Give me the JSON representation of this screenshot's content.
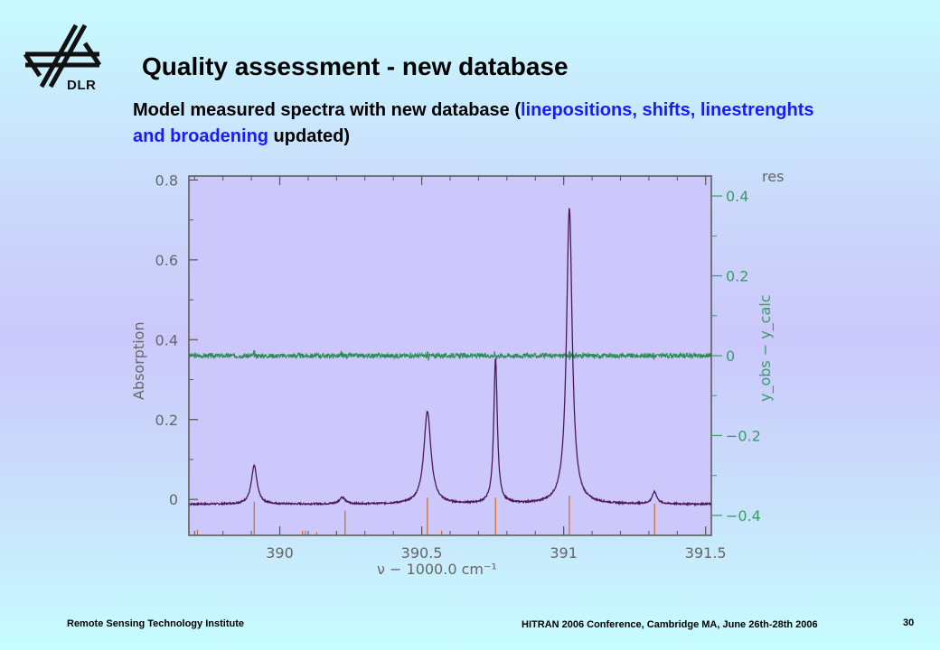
{
  "slide": {
    "logo_text": "DLR",
    "title": "Quality assessment - new database",
    "subtitle_before": "Model measured spectra with new database (",
    "subtitle_highlight": "linepositions, shifts, linestrenghts and broadening",
    "subtitle_after": " updated)",
    "footer_left": "Remote Sensing Technology  Institute",
    "footer_center": "HITRAN 2006 Conference, Cambridge MA, June 26th-28th 2006",
    "page_number": "30",
    "colors": {
      "highlight": "#1a1aff",
      "spectrum": "#4b1a55",
      "residual": "#2e8b57",
      "stick_lines": "#d2691e",
      "right_axis": "#3a9a6a"
    }
  },
  "chart_data": {
    "type": "line",
    "xlabel": "ν − 1000.0 cm⁻¹",
    "ylabel_left": "Absorption",
    "ylabel_right": "y_obs − y_calc",
    "corner_label": "res",
    "x_ticks": [
      "390",
      "390.5",
      "391",
      "391.5"
    ],
    "x_tick_values": [
      390,
      390.5,
      391,
      391.5
    ],
    "y_left_ticks": [
      "0",
      "0.2",
      "0.4",
      "0.6",
      "0.8"
    ],
    "y_left_tick_values": [
      0,
      0.2,
      0.4,
      0.6,
      0.8
    ],
    "y_right_ticks": [
      "−0.4",
      "−0.2",
      "0",
      "0.2",
      "0.4"
    ],
    "y_right_tick_values": [
      -0.4,
      -0.2,
      0,
      0.2,
      0.4
    ],
    "xlim": [
      389.68,
      391.52
    ],
    "ylim_left": [
      -0.09,
      0.81
    ],
    "ylim_right": [
      -0.45,
      0.45
    ],
    "series": [
      {
        "role": "spectrum",
        "baseline": -0.012,
        "peaks": [
          {
            "x": 389.91,
            "y": 0.084,
            "width": 0.012
          },
          {
            "x": 390.22,
            "y": 0.005,
            "width": 0.012
          },
          {
            "x": 390.52,
            "y": 0.22,
            "width": 0.015
          },
          {
            "x": 390.76,
            "y": 0.35,
            "width": 0.0075
          },
          {
            "x": 391.02,
            "y": 0.73,
            "width": 0.012
          },
          {
            "x": 391.32,
            "y": 0.018,
            "width": 0.01
          }
        ]
      },
      {
        "role": "residual",
        "level": 0
      },
      {
        "role": "stick_lines",
        "positions": [
          389.71,
          389.91,
          390.08,
          390.09,
          390.13,
          390.2,
          390.23,
          390.52,
          390.57,
          390.76,
          391.02,
          391.32
        ],
        "relative_heights": [
          0.14,
          0.85,
          0.12,
          0.12,
          0.08,
          0.1,
          0.62,
          0.95,
          0.12,
          0.95,
          1.0,
          0.8
        ]
      }
    ]
  }
}
